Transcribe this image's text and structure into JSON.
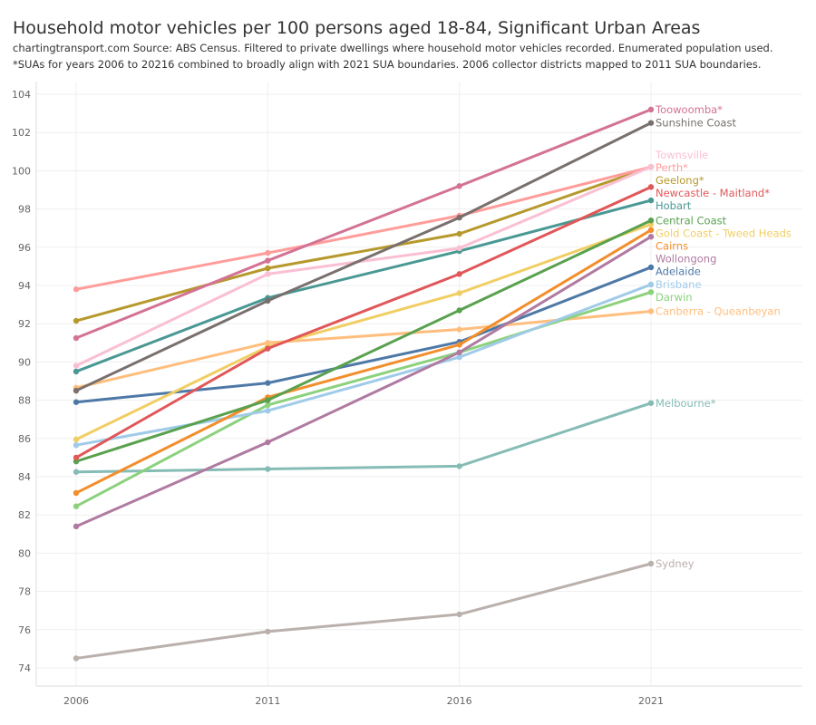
{
  "chart_data": {
    "type": "line",
    "title": "Household motor vehicles per 100 persons aged 18-84, Significant Urban Areas",
    "subtitle": [
      "chartingtransport.com  Source: ABS Census. Filtered to private dwellings where household motor vehicles recorded. Enumerated population used.",
      "*SUAs for years 2006 to 20216 combined to broadly align with 2021 SUA boundaries. 2006 collector districts mapped to 2011 SUA boundaries."
    ],
    "x": [
      2006,
      2011,
      2016,
      2021
    ],
    "x_ticks": [
      "2006",
      "2011",
      "2016",
      "2021"
    ],
    "y_ticks": [
      "74",
      "76",
      "78",
      "80",
      "82",
      "84",
      "86",
      "88",
      "90",
      "92",
      "94",
      "96",
      "98",
      "100",
      "102",
      "104"
    ],
    "ylim": [
      73,
      105
    ],
    "grid": true,
    "legend": "direct labels at line ends (right)",
    "series": [
      {
        "name": "Toowoomba*",
        "color": "#D37295",
        "values": [
          91.25,
          95.3,
          99.2,
          103.2
        ]
      },
      {
        "name": "Sunshine Coast",
        "color": "#79706E",
        "values": [
          88.5,
          93.2,
          97.55,
          102.5
        ]
      },
      {
        "name": "Townsville",
        "color": "#FABFD2",
        "values": [
          89.8,
          94.6,
          95.95,
          100.2
        ]
      },
      {
        "name": "Perth*",
        "color": "#FF9D9A",
        "values": [
          93.8,
          95.7,
          97.65,
          100.2
        ]
      },
      {
        "name": "Geelong*",
        "color": "#B6992D",
        "values": [
          92.15,
          94.9,
          96.7,
          100.2
        ]
      },
      {
        "name": "Newcastle - Maitland*",
        "color": "#E15759",
        "values": [
          85.0,
          90.7,
          94.6,
          99.15
        ]
      },
      {
        "name": "Hobart",
        "color": "#499894",
        "values": [
          89.5,
          93.35,
          95.8,
          98.45
        ]
      },
      {
        "name": "Central Coast",
        "color": "#59A14F",
        "values": [
          84.8,
          88.0,
          92.7,
          97.4
        ]
      },
      {
        "name": "Gold Coast - Tweed Heads",
        "color": "#F1CE63",
        "values": [
          85.95,
          90.8,
          93.6,
          97.2
        ]
      },
      {
        "name": "Cairns",
        "color": "#F28E2B",
        "values": [
          83.15,
          88.15,
          90.9,
          96.9
        ]
      },
      {
        "name": "Wollongong",
        "color": "#B07AA1",
        "values": [
          81.4,
          85.8,
          90.5,
          96.55
        ]
      },
      {
        "name": "Adelaide",
        "color": "#4E79A7",
        "values": [
          87.9,
          88.9,
          91.05,
          94.95
        ]
      },
      {
        "name": "Brisbane",
        "color": "#A0CBE8",
        "values": [
          85.65,
          87.45,
          90.25,
          94.05
        ]
      },
      {
        "name": "Darwin",
        "color": "#8CD17D",
        "values": [
          82.45,
          87.75,
          90.5,
          93.65
        ]
      },
      {
        "name": "Canberra - Queanbeyan",
        "color": "#FFBE7D",
        "values": [
          88.65,
          91.0,
          91.7,
          92.65
        ]
      },
      {
        "name": "Melbourne*",
        "color": "#86BCB6",
        "values": [
          84.25,
          84.4,
          84.55,
          87.85
        ]
      },
      {
        "name": "Sydney",
        "color": "#BAB0AC",
        "values": [
          74.5,
          75.9,
          76.8,
          79.45
        ]
      }
    ]
  }
}
